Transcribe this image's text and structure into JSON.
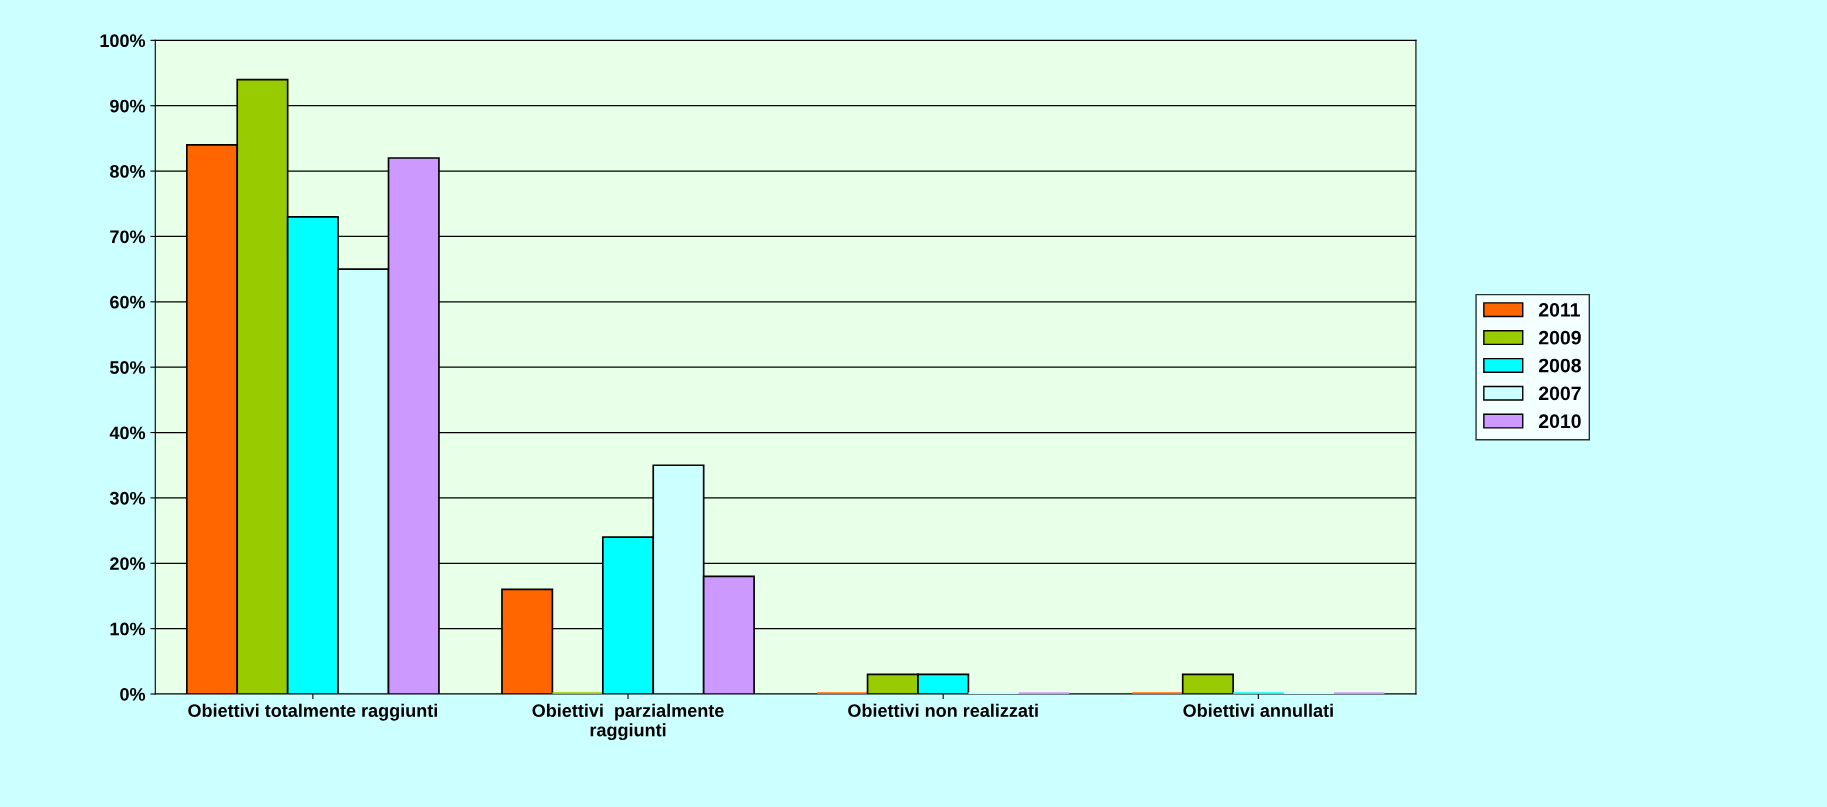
{
  "chart_data": {
    "type": "bar",
    "categories": [
      "Obiettivi totalmente raggiunti",
      "Obiettivi  parzialmente\nraggiunti",
      "Obiettivi non realizzati",
      "Obiettivi annullati"
    ],
    "series": [
      {
        "name": "2011",
        "color": "#ff6600",
        "values": [
          84,
          16,
          0,
          0
        ]
      },
      {
        "name": "2009",
        "color": "#99cc00",
        "values": [
          94,
          0,
          3,
          3
        ]
      },
      {
        "name": "2008",
        "color": "#00ffff",
        "values": [
          73,
          24,
          3,
          0
        ]
      },
      {
        "name": "2007",
        "color": "#ccffff",
        "values": [
          65,
          35,
          0,
          0
        ]
      },
      {
        "name": "2010",
        "color": "#cc99ff",
        "values": [
          82,
          18,
          0,
          0
        ]
      }
    ],
    "ylim": [
      0,
      100
    ],
    "yticks": [
      {
        "value": 0,
        "label": "0%"
      },
      {
        "value": 10,
        "label": "10%"
      },
      {
        "value": 20,
        "label": "20%"
      },
      {
        "value": 30,
        "label": "30%"
      },
      {
        "value": 40,
        "label": "40%"
      },
      {
        "value": 50,
        "label": "50%"
      },
      {
        "value": 60,
        "label": "60%"
      },
      {
        "value": 70,
        "label": "70%"
      },
      {
        "value": 80,
        "label": "80%"
      },
      {
        "value": 90,
        "label": "90%"
      },
      {
        "value": 100,
        "label": "100%"
      }
    ],
    "grid": "y",
    "legend": "right"
  }
}
